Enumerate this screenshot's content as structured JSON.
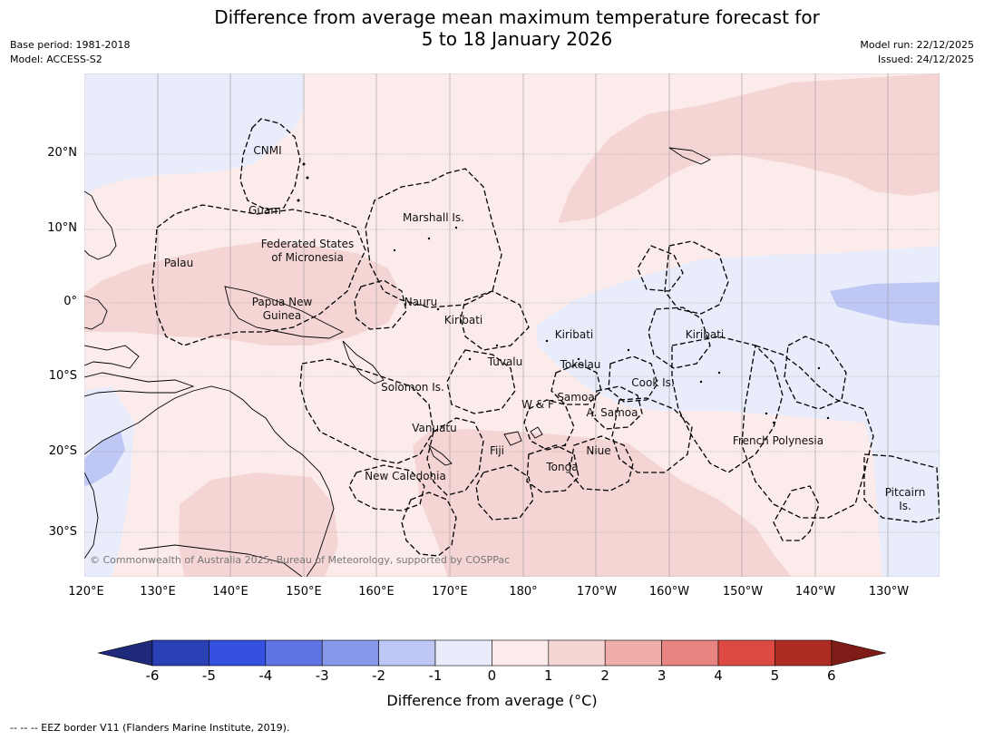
{
  "title_line1": "Difference from average mean maximum temperature forecast for",
  "title_line2": "5 to 18 January 2026",
  "meta_left": {
    "base_period": "Base period: 1981-2018",
    "model": "Model: ACCESS-S2"
  },
  "meta_right": {
    "model_run": "Model run: 22/12/2025",
    "issued": "Issued: 24/12/2025"
  },
  "lat_ticks": [
    "20°N",
    "10°N",
    "0°",
    "10°S",
    "20°S",
    "30°S"
  ],
  "lon_ticks": [
    "120°E",
    "130°E",
    "140°E",
    "150°E",
    "160°E",
    "170°E",
    "180°",
    "170°W",
    "160°W",
    "150°W",
    "140°W",
    "130°W"
  ],
  "region_labels": [
    "CNMI",
    "Guam",
    "Marshall Is.",
    "Federated States",
    "of Micronesia",
    "Palau",
    "Papua New",
    "Guinea",
    "Nauru",
    "Kiribati",
    "Kiribati",
    "Kiribati",
    "Tuvalu",
    "Tokelau",
    "Solomon Is.",
    "Samoa",
    "W & F",
    "A. Samoa",
    "Cook Is.",
    "Vanuatu",
    "Fiji",
    "Niue",
    "Tonga",
    "New Caledonia",
    "French Polynesia",
    "Pitcairn",
    "Is."
  ],
  "copyright": "© Commonwealth of Australia 2025, Bureau of Meteorology, supported by COSPPac",
  "colorbar": {
    "ticks": [
      "-6",
      "-5",
      "-4",
      "-3",
      "-2",
      "-1",
      "0",
      "1",
      "2",
      "3",
      "4",
      "5",
      "6"
    ],
    "label": "Difference from average (°C)",
    "colors": [
      "#1f2b7a",
      "#2a40b5",
      "#3550e0",
      "#5e74e2",
      "#8797ea",
      "#bfc8f4",
      "#e8ecfb",
      "#fbeceb",
      "#f5d5d4",
      "#eeada9",
      "#e58480",
      "#dc4a42",
      "#ae2c24",
      "#7e1d18"
    ]
  },
  "footnote": "--  --  -- EEZ border V11 (Flanders Marine Institute, 2019)."
}
